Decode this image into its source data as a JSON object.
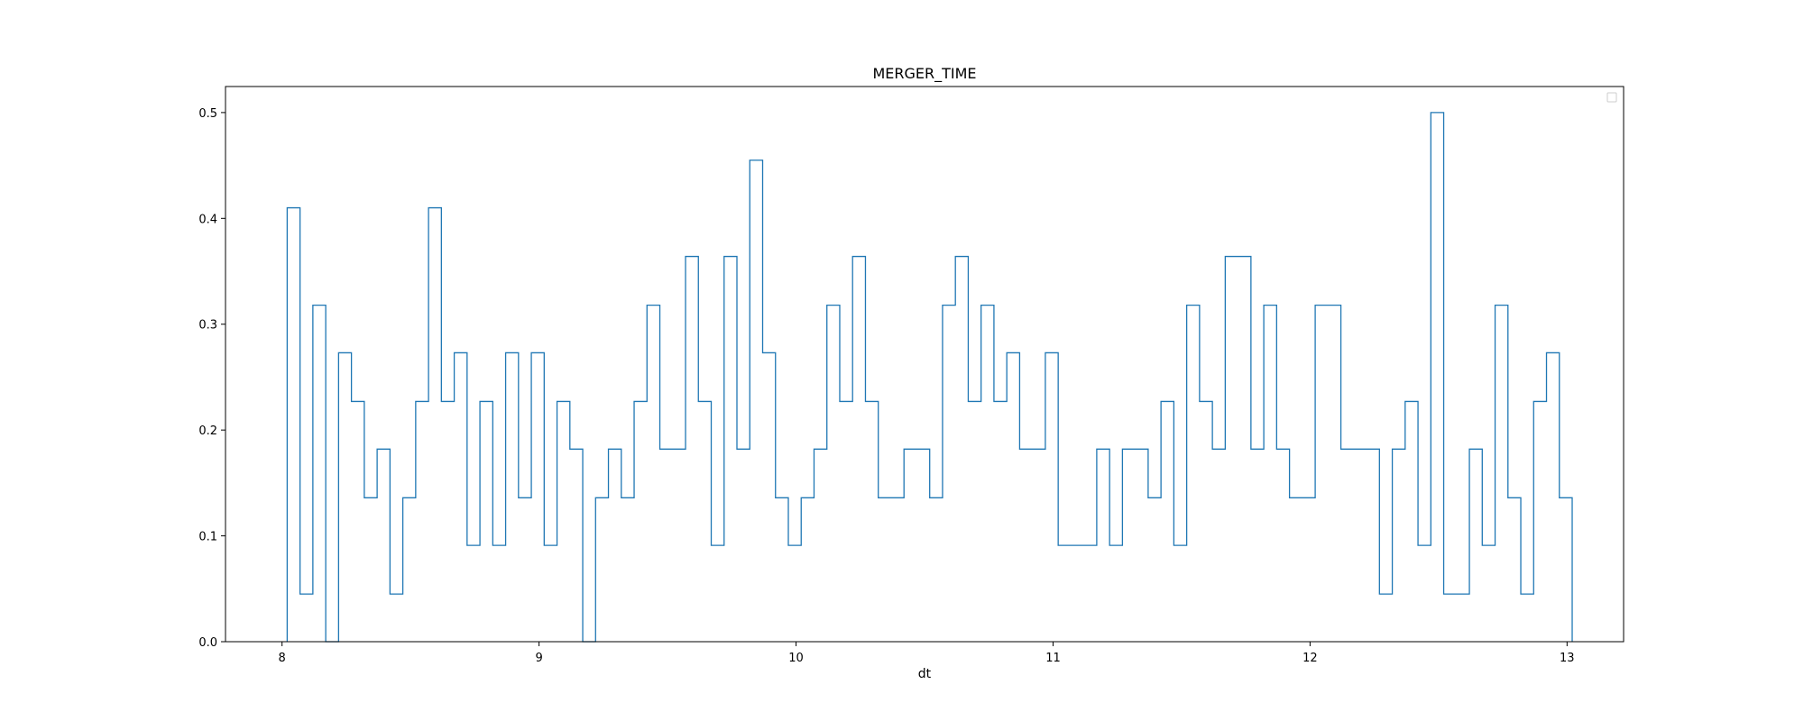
{
  "chart_data": {
    "type": "histogram-step",
    "title": "MERGER_TIME",
    "xlabel": "dt",
    "ylabel": "",
    "xlim": [
      7.78,
      13.22
    ],
    "ylim": [
      0,
      0.5246
    ],
    "xticks": [
      8,
      9,
      10,
      11,
      12,
      13
    ],
    "yticks": [
      0.0,
      0.1,
      0.2,
      0.3,
      0.4,
      0.5
    ],
    "ytick_labels": [
      "0.0",
      "0.1",
      "0.2",
      "0.3",
      "0.4",
      "0.5"
    ],
    "grid": false,
    "legend": "top-right (empty)",
    "series_color": "#1f77b4",
    "bin_start": 8.02,
    "bin_width": 0.05,
    "values": [
      0.41,
      0.045,
      0.318,
      0.0,
      0.273,
      0.227,
      0.136,
      0.182,
      0.045,
      0.136,
      0.227,
      0.41,
      0.227,
      0.273,
      0.091,
      0.227,
      0.091,
      0.273,
      0.136,
      0.273,
      0.091,
      0.227,
      0.182,
      0.0,
      0.136,
      0.182,
      0.136,
      0.227,
      0.318,
      0.182,
      0.182,
      0.364,
      0.227,
      0.091,
      0.364,
      0.182,
      0.455,
      0.273,
      0.136,
      0.091,
      0.136,
      0.182,
      0.318,
      0.227,
      0.364,
      0.227,
      0.136,
      0.136,
      0.182,
      0.182,
      0.136,
      0.318,
      0.364,
      0.227,
      0.318,
      0.227,
      0.273,
      0.182,
      0.182,
      0.273,
      0.091,
      0.091,
      0.091,
      0.182,
      0.091,
      0.182,
      0.182,
      0.136,
      0.227,
      0.091,
      0.318,
      0.227,
      0.182,
      0.364,
      0.364,
      0.182,
      0.318,
      0.182,
      0.136,
      0.136,
      0.318,
      0.318,
      0.182,
      0.182,
      0.182,
      0.045,
      0.182,
      0.227,
      0.091,
      0.5,
      0.045,
      0.045,
      0.182,
      0.091,
      0.318,
      0.136,
      0.045,
      0.227,
      0.273,
      0.136
    ]
  }
}
